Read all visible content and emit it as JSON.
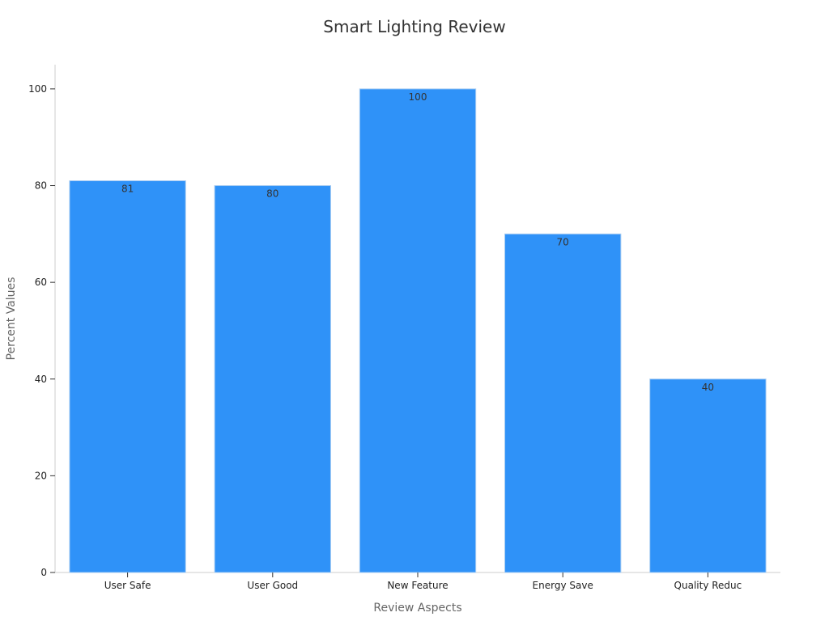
{
  "chart_data": {
    "type": "bar",
    "title": "Smart Lighting Review",
    "xlabel": "Review Aspects",
    "ylabel": "Percent Values",
    "categories": [
      "User Safe",
      "User Good",
      "New Feature",
      "Energy Save",
      "Quality Reduc"
    ],
    "values": [
      81,
      80,
      100,
      70,
      40
    ],
    "ylim": [
      0,
      105
    ],
    "yticks": [
      0,
      20,
      40,
      60,
      80,
      100
    ],
    "grid": false,
    "legend": "none",
    "bar_color": "#2f92f8",
    "bar_edge_color": "#a9cdf2",
    "axis_color": "#cccccc"
  }
}
